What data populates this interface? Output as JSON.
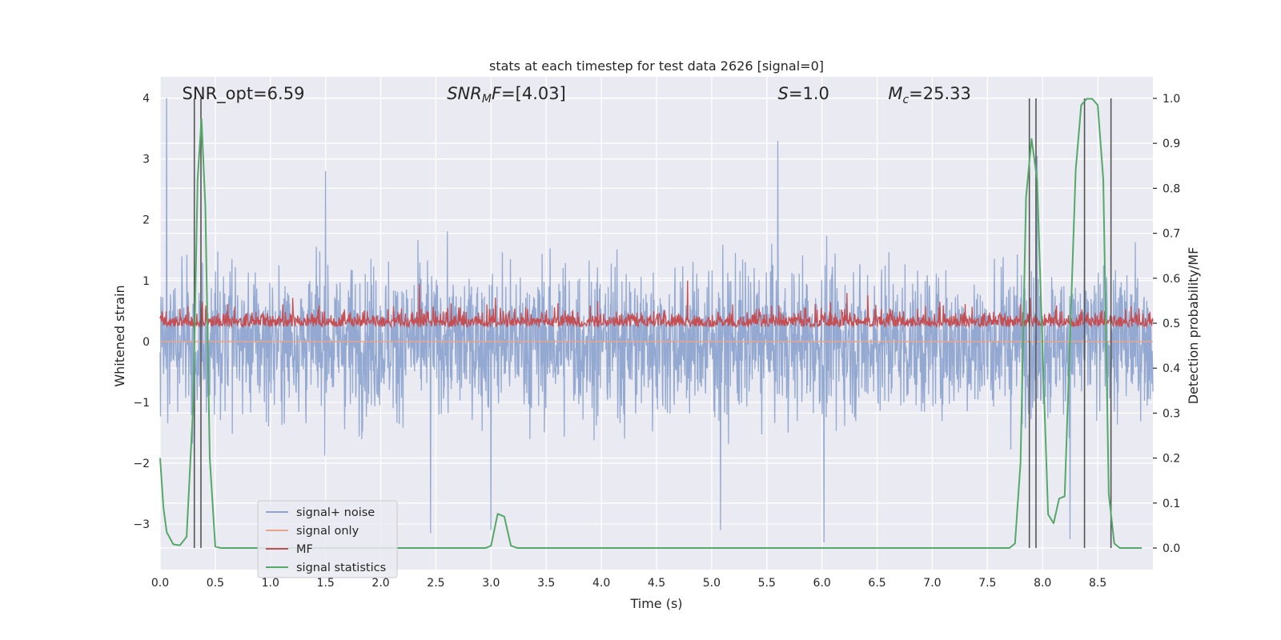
{
  "chart_data": {
    "type": "line",
    "title": "stats at each timestep for test data 2626 [signal=0]",
    "xlabel": "Time (s)",
    "ylabel": "Whitened strain",
    "ylabel_right": "Detection probability/MF",
    "xlim": [
      0.0,
      9.0
    ],
    "ylim": [
      -3.75,
      4.35
    ],
    "ylim_right": [
      -0.048,
      1.048
    ],
    "xticks": [
      "0.0",
      "0.5",
      "1.0",
      "1.5",
      "2.0",
      "2.5",
      "3.0",
      "3.5",
      "4.0",
      "4.5",
      "5.0",
      "5.5",
      "6.0",
      "6.5",
      "7.0",
      "7.5",
      "8.0",
      "8.5"
    ],
    "yticks_left": [
      "4",
      "3",
      "2",
      "1",
      "0",
      "−1",
      "−2",
      "−3"
    ],
    "yticks_right": [
      "1.0",
      "0.9",
      "0.8",
      "0.7",
      "0.6",
      "0.5",
      "0.4",
      "0.3",
      "0.2",
      "0.1",
      "0.0"
    ],
    "grid": true,
    "legend_position": "lower-left",
    "annotations": [
      {
        "label": "SNR_opt=6.59",
        "x": 0.2
      },
      {
        "label": "SNR_MF=[4.03]",
        "x": 2.6
      },
      {
        "label": "S=1.0",
        "x": 5.6
      },
      {
        "label": "M_c=25.33",
        "x": 6.6
      }
    ],
    "vlines_x": [
      0.31,
      0.37,
      7.88,
      7.94,
      8.38,
      8.62
    ],
    "series": [
      {
        "name": "signal+ noise",
        "color": "#8fa5cf",
        "approx_range": [
          -3.35,
          4.0
        ],
        "spikes": [
          {
            "x": 0.06,
            "y": 4.0
          },
          {
            "x": 1.5,
            "y": 2.8
          },
          {
            "x": 2.45,
            "y": -3.15
          },
          {
            "x": 3.0,
            "y": -3.1
          },
          {
            "x": 5.6,
            "y": 3.3
          },
          {
            "x": 5.08,
            "y": -3.1
          },
          {
            "x": 6.02,
            "y": -3.3
          },
          {
            "x": 7.95,
            "y": 3.05
          },
          {
            "x": 8.25,
            "y": -3.25
          }
        ]
      },
      {
        "name": "signal only",
        "color": "#e8a48c",
        "values_constant": 0.0
      },
      {
        "name": "MF",
        "color": "#c44e52",
        "approx_range": [
          0.0,
          1.0
        ],
        "peaks": [
          {
            "x": 4.78,
            "y": 1.0
          },
          {
            "x": 2.35,
            "y": 0.95
          }
        ]
      },
      {
        "name": "signal statistics",
        "color": "#55a868",
        "axis": "right",
        "x": [
          0.0,
          0.03,
          0.06,
          0.12,
          0.18,
          0.24,
          0.3,
          0.34,
          0.375,
          0.41,
          0.45,
          0.5,
          0.55,
          2.95,
          3.0,
          3.06,
          3.12,
          3.18,
          3.24,
          7.7,
          7.75,
          7.8,
          7.85,
          7.9,
          7.95,
          8.0,
          8.05,
          8.1,
          8.15,
          8.2,
          8.25,
          8.3,
          8.35,
          8.4,
          8.45,
          8.5,
          8.55,
          8.6,
          8.65,
          8.7,
          8.78,
          8.9
        ],
        "y": [
          0.2,
          0.09,
          0.035,
          0.008,
          0.006,
          0.025,
          0.32,
          0.82,
          0.955,
          0.76,
          0.2,
          0.003,
          0.0,
          0.0,
          0.005,
          0.076,
          0.07,
          0.005,
          0.0,
          0.0,
          0.01,
          0.19,
          0.78,
          0.91,
          0.82,
          0.44,
          0.075,
          0.055,
          0.11,
          0.115,
          0.475,
          0.84,
          0.985,
          0.999,
          0.999,
          0.985,
          0.82,
          0.12,
          0.01,
          0.0,
          0.0,
          0.0
        ]
      }
    ]
  }
}
